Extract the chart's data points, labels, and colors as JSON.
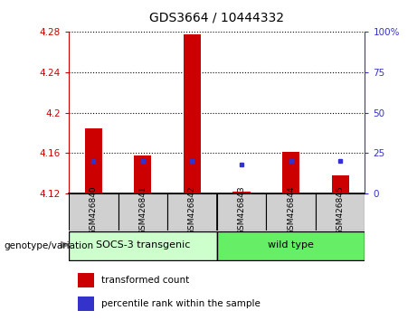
{
  "title": "GDS3664 / 10444332",
  "categories": [
    "GSM426840",
    "GSM426841",
    "GSM426842",
    "GSM426843",
    "GSM426844",
    "GSM426845"
  ],
  "red_values": [
    4.185,
    4.158,
    4.278,
    4.122,
    4.161,
    4.138
  ],
  "blue_values_pct": [
    20,
    20,
    20,
    18,
    20,
    20
  ],
  "ylim_left": [
    4.12,
    4.28
  ],
  "ylim_right": [
    0,
    100
  ],
  "left_yticks": [
    4.12,
    4.16,
    4.2,
    4.24,
    4.28
  ],
  "right_yticks": [
    0,
    25,
    50,
    75,
    100
  ],
  "bar_bottom": 4.12,
  "left_color": "#cc0000",
  "blue_color": "#3333cc",
  "group1_label": "SOCS-3 transgenic",
  "group2_label": "wild type",
  "group1_color": "#ccffcc",
  "group2_color": "#66ee66",
  "legend_red": "transformed count",
  "legend_blue": "percentile rank within the sample",
  "genotype_label": "genotype/variation",
  "fig_width": 4.61,
  "fig_height": 3.54,
  "dpi": 100
}
